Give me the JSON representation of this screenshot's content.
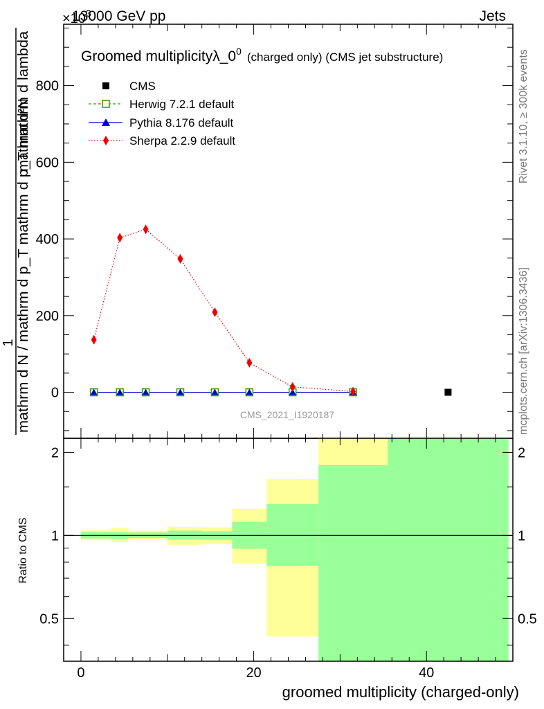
{
  "header": {
    "energy_label": "13000 GeV pp",
    "process_label": "Jets",
    "exponent_label": "×10",
    "exponent_power": "3"
  },
  "side": {
    "rivet_label": "Rivet 3.1.10, ≥ 300k events",
    "mcplots_label": "mcplots.cern.ch [arXiv:1306.3436]"
  },
  "watermark": "CMS_2021_I1920187",
  "chart_data": [
    {
      "type": "line",
      "title_main": "Groomed multiplicityλ_0",
      "title_sup": "0",
      "title_note": "(charged only) (CMS jet substructure)",
      "ylabel_top": "mathrm d²N",
      "ylabel_one": "1",
      "ylabel_bottom": "mathrm d N / mathrm d p_T mathrm d p_T mathrm d lambda",
      "xlim": [
        -2,
        50
      ],
      "ylim": [
        -120,
        960
      ],
      "ytick_labels": [
        "0",
        "200",
        "400",
        "600",
        "800"
      ],
      "yticks": [
        0,
        200,
        400,
        600,
        800
      ],
      "legend_position": "top-left",
      "series": [
        {
          "name": "CMS",
          "color": "#000000",
          "marker": "square-filled",
          "line": "none",
          "x": [
            1.5,
            4.5,
            7.5,
            11.5,
            15.5,
            19.5,
            24.5,
            31.5,
            42.5
          ],
          "y": [
            0,
            0,
            0,
            0,
            0,
            0,
            0,
            0,
            0
          ]
        },
        {
          "name": "Herwig 7.2.1 default",
          "color": "#339900",
          "marker": "square-open",
          "line": "dashed",
          "x": [
            1.5,
            4.5,
            7.5,
            11.5,
            15.5,
            19.5,
            24.5,
            31.5
          ],
          "y": [
            0,
            0,
            0,
            0,
            0,
            0,
            0,
            0
          ]
        },
        {
          "name": "Pythia 8.176 default",
          "color": "#0000cc",
          "marker": "triangle",
          "line": "solid",
          "x": [
            1.5,
            4.5,
            7.5,
            11.5,
            15.5,
            19.5,
            24.5,
            31.5
          ],
          "y": [
            0,
            0,
            0,
            0,
            0,
            0,
            0,
            0
          ]
        },
        {
          "name": "Sherpa 2.2.9 default",
          "color": "#ee0000",
          "marker": "diamond",
          "line": "dotted",
          "x": [
            1.5,
            4.5,
            7.5,
            11.5,
            15.5,
            19.5,
            24.5,
            31.5
          ],
          "y": [
            137,
            403,
            425,
            348,
            209,
            77,
            14,
            2
          ]
        }
      ]
    },
    {
      "type": "area",
      "ylabel": "Ratio to CMS",
      "xlabel": "groomed multiplicity (charged-only)",
      "xlim": [
        -2,
        50
      ],
      "ylim": [
        0.35,
        2.25
      ],
      "xtick_labels": [
        "0",
        "20",
        "40"
      ],
      "xticks": [
        0,
        20,
        40
      ],
      "ytick_labels": [
        "0.5",
        "1",
        "2"
      ],
      "yticks": [
        0.5,
        1,
        2
      ],
      "reference": 1,
      "bands": {
        "edges": [
          0,
          3.5,
          5.5,
          10,
          14,
          17.5,
          21.5,
          27.5,
          35.5,
          49.5
        ],
        "stat": {
          "color": "#99ff99",
          "lo": [
            0.975,
            0.97,
            0.98,
            0.965,
            0.965,
            0.895,
            0.775,
            0.35,
            0.35
          ],
          "hi": [
            1.03,
            1.03,
            1.025,
            1.04,
            1.035,
            1.12,
            1.3,
            1.8,
            2.25
          ]
        },
        "total": {
          "color": "#ffff99",
          "lo": [
            0.965,
            0.945,
            0.965,
            0.925,
            0.93,
            0.79,
            0.43,
            0.35,
            0.35
          ],
          "hi": [
            1.045,
            1.065,
            1.04,
            1.075,
            1.07,
            1.25,
            1.6,
            2.25,
            2.25
          ]
        }
      }
    }
  ]
}
